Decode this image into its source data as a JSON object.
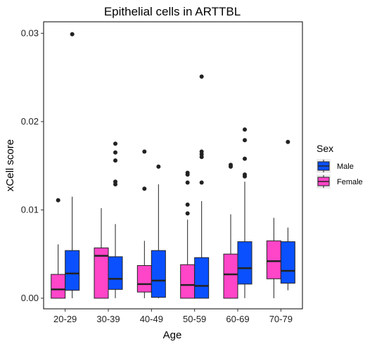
{
  "chart_data": {
    "type": "boxplot",
    "title": "Epithelial cells in ARTTBL",
    "xlabel": "Age",
    "ylabel": "xCell score",
    "ylim": [
      -0.0012,
      0.0313
    ],
    "yticks": [
      0.0,
      0.01,
      0.02,
      0.03
    ],
    "ytick_labels": [
      "0.00",
      "0.01",
      "0.02",
      "0.03"
    ],
    "categories": [
      "20-29",
      "30-39",
      "40-49",
      "50-59",
      "60-69",
      "70-79"
    ],
    "grid": false,
    "legend": {
      "title": "Sex",
      "placement": "right",
      "entries": [
        {
          "name": "Male",
          "color": "#0a50ff"
        },
        {
          "name": "Female",
          "color": "#ff45c8"
        }
      ]
    },
    "series": [
      {
        "name": "Female",
        "color": "#ff45c8",
        "boxes": [
          {
            "q1": 0.0,
            "median": 0.001,
            "q3": 0.0027,
            "whisker_low": 0.0,
            "whisker_high": 0.0061,
            "outliers": [
              0.0111
            ]
          },
          {
            "q1": 0.0,
            "median": 0.0048,
            "q3": 0.0057,
            "whisker_low": 0.0,
            "whisker_high": 0.0102,
            "outliers": []
          },
          {
            "q1": 0.0007,
            "median": 0.0016,
            "q3": 0.0037,
            "whisker_low": 0.0,
            "whisker_high": 0.0065,
            "outliers": [
              0.0124,
              0.0166
            ]
          },
          {
            "q1": 0.0,
            "median": 0.0015,
            "q3": 0.0038,
            "whisker_low": 0.0,
            "whisker_high": 0.0089,
            "outliers": [
              0.0096,
              0.0106,
              0.0131,
              0.014,
              0.0142
            ]
          },
          {
            "q1": 0.0,
            "median": 0.0027,
            "q3": 0.005,
            "whisker_low": 0.0,
            "whisker_high": 0.0095,
            "outliers": [
              0.0149,
              0.0151
            ]
          },
          {
            "q1": 0.0022,
            "median": 0.0042,
            "q3": 0.0065,
            "whisker_low": 0.0,
            "whisker_high": 0.0091,
            "outliers": []
          }
        ]
      },
      {
        "name": "Male",
        "color": "#0a50ff",
        "boxes": [
          {
            "q1": 0.0009,
            "median": 0.0028,
            "q3": 0.0054,
            "whisker_low": 0.0,
            "whisker_high": 0.0115,
            "outliers": [
              0.0299
            ]
          },
          {
            "q1": 0.001,
            "median": 0.0022,
            "q3": 0.0047,
            "whisker_low": 0.0,
            "whisker_high": 0.0084,
            "outliers": [
              0.0129,
              0.0132,
              0.0156,
              0.0165,
              0.0175
            ]
          },
          {
            "q1": 0.0001,
            "median": 0.002,
            "q3": 0.0054,
            "whisker_low": 0.0,
            "whisker_high": 0.0129,
            "outliers": [
              0.0149
            ]
          },
          {
            "q1": 0.0,
            "median": 0.0014,
            "q3": 0.0046,
            "whisker_low": 0.0,
            "whisker_high": 0.011,
            "outliers": [
              0.0131,
              0.016,
              0.0163,
              0.0166,
              0.0251
            ]
          },
          {
            "q1": 0.0016,
            "median": 0.0034,
            "q3": 0.0064,
            "whisker_low": 0.0,
            "whisker_high": 0.0132,
            "outliers": [
              0.0138,
              0.014,
              0.0158,
              0.0179,
              0.0191
            ]
          },
          {
            "q1": 0.0017,
            "median": 0.0031,
            "q3": 0.0064,
            "whisker_low": 0.0009,
            "whisker_high": 0.008,
            "outliers": [
              0.0177
            ]
          }
        ]
      }
    ]
  }
}
